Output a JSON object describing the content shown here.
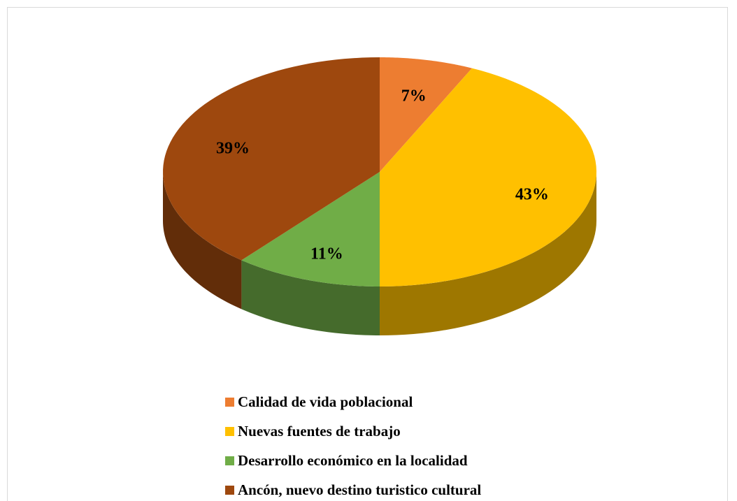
{
  "chart_data": {
    "type": "pie",
    "categories": [
      "Calidad de vida poblacional",
      "Nuevas fuentes de trabajo",
      "Desarrollo económico en la localidad",
      "Ancón, nuevo destino turistico cultural"
    ],
    "values": [
      7,
      43,
      11,
      39
    ],
    "value_labels": [
      "7%",
      "43%",
      "11%",
      "39%"
    ],
    "colors": [
      "#ED7D31",
      "#FFC000",
      "#70AD47",
      "#9E480E"
    ],
    "legend": "bottom"
  }
}
